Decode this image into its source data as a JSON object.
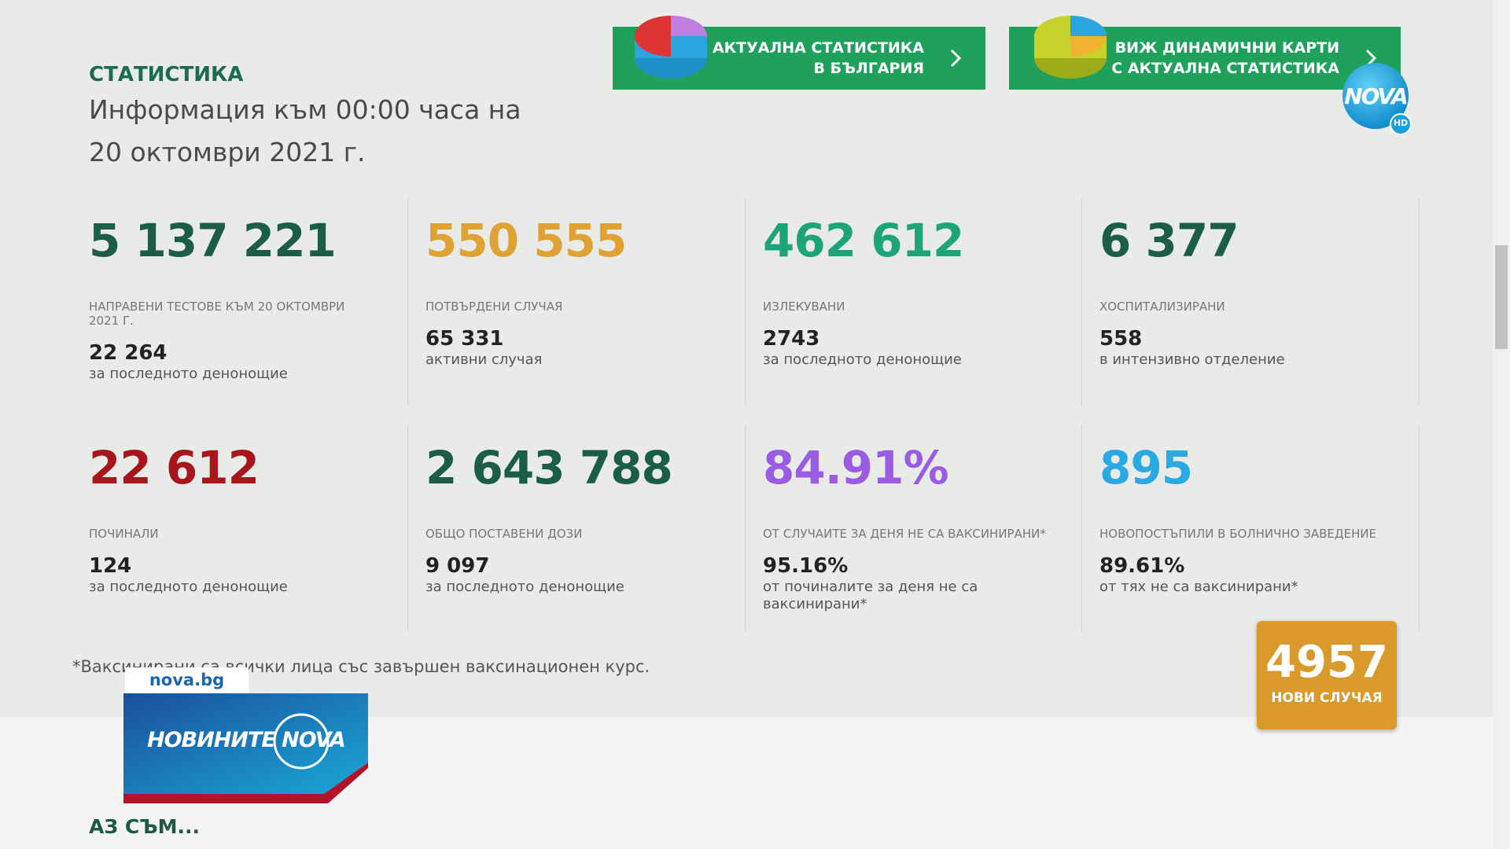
{
  "header": {
    "section": "СТАТИСТИКА",
    "info_line1": "Информация към 00:00 часа на",
    "info_line2": "20 октомври 2021 г."
  },
  "buttons": [
    {
      "line1": "АКТУАЛНА СТАТИСТИКА",
      "line2": "В БЪЛГАРИЯ"
    },
    {
      "line1": "ВИЖ ДИНАМИЧНИ КАРТИ",
      "line2": "С АКТУАЛНА СТАТИСТИКА"
    }
  ],
  "stats": [
    {
      "value": "5 137 221",
      "color": "#1b5e45",
      "label": "НАПРАВЕНИ ТЕСТОВЕ КЪМ 20 ОКТОМВРИ 2021 Г.",
      "sub_value": "22 264",
      "sub_label": "за последното денонощие"
    },
    {
      "value": "550 555",
      "color": "#e0a232",
      "label": "ПОТВЪРДЕНИ СЛУЧАЯ",
      "sub_value": "65 331",
      "sub_label": "активни случая"
    },
    {
      "value": "462 612",
      "color": "#1ea47a",
      "label": "ИЗЛЕКУВАНИ",
      "sub_value": "2743",
      "sub_label": "за последното денонощие"
    },
    {
      "value": "6 377",
      "color": "#1b5e45",
      "label": "ХОСПИТАЛИЗИРАНИ",
      "sub_value": "558",
      "sub_label": "в интензивно отделение"
    },
    {
      "value": "22 612",
      "color": "#a8161b",
      "label": "ПОЧИНАЛИ",
      "sub_value": "124",
      "sub_label": "за последното денонощие"
    },
    {
      "value": "2 643 788",
      "color": "#1b5e45",
      "label": "ОБЩО ПОСТАВЕНИ ДОЗИ",
      "sub_value": "9 097",
      "sub_label": "за последното денонощие"
    },
    {
      "value": "84.91%",
      "color": "#9a5ce3",
      "label": "ОТ СЛУЧАИТЕ ЗА ДЕНЯ НЕ СА ВАКСИНИРАНИ*",
      "sub_value": "95.16%",
      "sub_label": "от починалите за деня не са ваксинирани*"
    },
    {
      "value": "895",
      "color": "#2aa9e2",
      "label": "НОВОПОСТЪПИЛИ В БОЛНИЧНО ЗАВЕДЕНИЕ",
      "sub_value": "89.61%",
      "sub_label": "от тях не са ваксинирани*"
    }
  ],
  "footnote": "*Ваксинирани са всички лица със завършен ваксинационен курс.",
  "overlay": {
    "site": "nova.bg",
    "show": "НОВИНИТЕ NOVA",
    "logo": "NOVA",
    "logo_badge": "HD",
    "badge_value": "4957",
    "badge_label": "НОВИ СЛУЧАЯ"
  },
  "next_section": "АЗ СЪМ..."
}
